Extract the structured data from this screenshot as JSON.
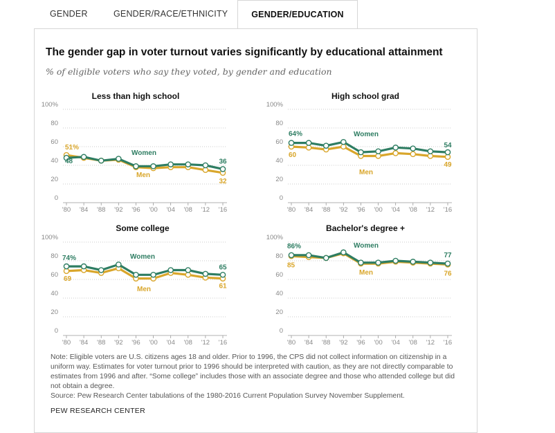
{
  "tabs": [
    {
      "label": "GENDER",
      "active": false
    },
    {
      "label": "GENDER/RACE/ETHNICITY",
      "active": false
    },
    {
      "label": "GENDER/EDUCATION",
      "active": true
    }
  ],
  "title": "The gender gap in voter turnout varies significantly by educational attainment",
  "subtitle": "% of eligible voters who say they voted, by gender and education",
  "colors": {
    "women": "#2e7d62",
    "men": "#d9a62b",
    "grid": "#bbbbbb",
    "axis": "#999999",
    "tick": "#888888"
  },
  "chart_data": [
    {
      "type": "line",
      "title": "Less than high school",
      "x": [
        "'80",
        "'84",
        "'88",
        "'92",
        "'96",
        "'00",
        "'04",
        "'08",
        "'12",
        "'16"
      ],
      "ylim": [
        0,
        100
      ],
      "yticks": [
        "0",
        "20",
        "40",
        "60",
        "80",
        "100%"
      ],
      "series": [
        {
          "name": "Women",
          "values": [
            48,
            49,
            45,
            47,
            39,
            39,
            41,
            41,
            40,
            36
          ]
        },
        {
          "name": "Men",
          "values": [
            51,
            48,
            45,
            46,
            38,
            37,
            38,
            38,
            35,
            32
          ]
        }
      ],
      "data_labels": {
        "women_start": "48",
        "women_end": "36",
        "men_start": "51%",
        "men_end": "32"
      }
    },
    {
      "type": "line",
      "title": "High school grad",
      "x": [
        "'80",
        "'84",
        "'88",
        "'92",
        "'96",
        "'00",
        "'04",
        "'08",
        "'12",
        "'16"
      ],
      "ylim": [
        0,
        100
      ],
      "yticks": [
        "0",
        "20",
        "40",
        "60",
        "80",
        "100%"
      ],
      "series": [
        {
          "name": "Women",
          "values": [
            64,
            64,
            61,
            65,
            54,
            55,
            59,
            58,
            55,
            54
          ]
        },
        {
          "name": "Men",
          "values": [
            60,
            59,
            57,
            60,
            50,
            50,
            53,
            52,
            50,
            49
          ]
        }
      ],
      "data_labels": {
        "women_start": "64%",
        "women_end": "54",
        "men_start": "60",
        "men_end": "49"
      }
    },
    {
      "type": "line",
      "title": "Some college",
      "x": [
        "'80",
        "'84",
        "'88",
        "'92",
        "'96",
        "'00",
        "'04",
        "'08",
        "'12",
        "'16"
      ],
      "ylim": [
        0,
        100
      ],
      "yticks": [
        "0",
        "20",
        "40",
        "60",
        "80",
        "100%"
      ],
      "series": [
        {
          "name": "Women",
          "values": [
            74,
            74,
            70,
            76,
            65,
            65,
            70,
            70,
            66,
            65
          ]
        },
        {
          "name": "Men",
          "values": [
            69,
            70,
            67,
            72,
            61,
            61,
            67,
            65,
            62,
            61
          ]
        }
      ],
      "data_labels": {
        "women_start": "74%",
        "women_end": "65",
        "men_start": "69",
        "men_end": "61"
      }
    },
    {
      "type": "line",
      "title": "Bachelor's degree +",
      "x": [
        "'80",
        "'84",
        "'88",
        "'92",
        "'96",
        "'00",
        "'04",
        "'08",
        "'12",
        "'16"
      ],
      "ylim": [
        0,
        100
      ],
      "yticks": [
        "0",
        "20",
        "40",
        "60",
        "80",
        "100%"
      ],
      "series": [
        {
          "name": "Women",
          "values": [
            86,
            86,
            83,
            89,
            78,
            78,
            80,
            79,
            78,
            77
          ]
        },
        {
          "name": "Men",
          "values": [
            85,
            84,
            83,
            88,
            77,
            77,
            79,
            78,
            77,
            76
          ]
        }
      ],
      "data_labels": {
        "women_start": "86%",
        "women_end": "77",
        "men_start": "85",
        "men_end": "76"
      }
    }
  ],
  "series_labels": {
    "women": "Women",
    "men": "Men"
  },
  "note": "Note: Eligible voters are U.S. citizens ages 18 and older. Prior to 1996, the CPS did not collect information on citizenship in a uniform way. Estimates for voter turnout prior to 1996 should be interpreted with caution, as they are not directly comparable to estimates from 1996 and after. “Some college” includes those with an associate degree and those who attended college but did not obtain a degree.",
  "source": "Source: Pew Research Center tabulations of the 1980-2016 Current Population Survey November Supplement.",
  "brand": "PEW RESEARCH CENTER"
}
